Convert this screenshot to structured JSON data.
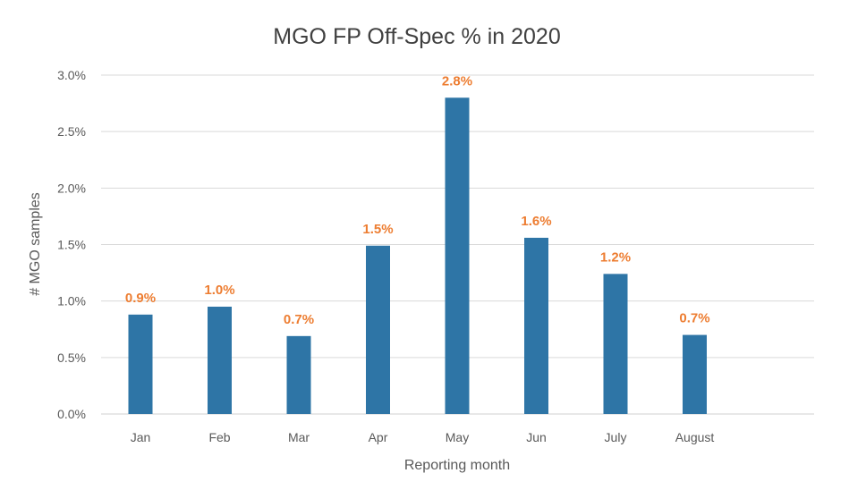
{
  "chart_data": {
    "type": "bar",
    "title": "MGO FP Off-Spec % in 2020",
    "xlabel": "Reporting month",
    "ylabel": "# MGO samples",
    "categories": [
      "Jan",
      "Feb",
      "Mar",
      "Apr",
      "May",
      "Jun",
      "July",
      "August"
    ],
    "values": [
      0.88,
      0.95,
      0.69,
      1.49,
      2.8,
      1.56,
      1.24,
      0.7
    ],
    "data_labels": [
      "0.9%",
      "1.0%",
      "0.7%",
      "1.5%",
      "2.8%",
      "1.6%",
      "1.2%",
      "0.7%"
    ],
    "ylim": [
      0,
      3.0
    ],
    "yticks": [
      0,
      0.5,
      1.0,
      1.5,
      2.0,
      2.5,
      3.0
    ],
    "ytick_labels": [
      "0.0%",
      "0.5%",
      "1.0%",
      "1.5%",
      "2.0%",
      "2.5%",
      "3.0%"
    ],
    "grid": true,
    "legend": "none",
    "colors": {
      "bar": "#2e75a6",
      "data_label": "#ed7d31",
      "grid": "#d9d9d9",
      "text": "#595959",
      "title": "#404040"
    }
  }
}
